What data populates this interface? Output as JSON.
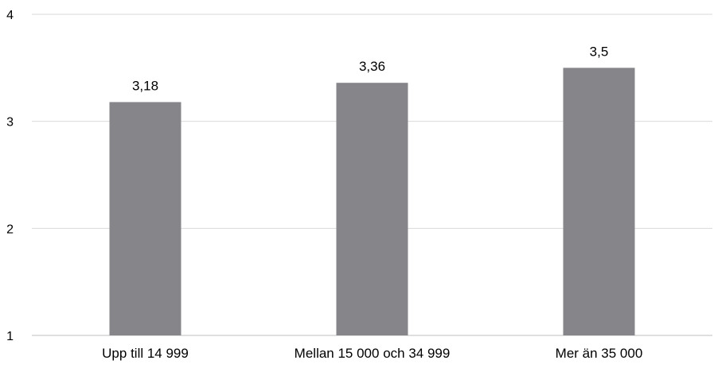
{
  "chart_data": {
    "type": "bar",
    "title": "",
    "xlabel": "",
    "ylabel": "",
    "categories": [
      "Upp till 14 999",
      "Mellan 15 000 och 34 999",
      "Mer än 35 000"
    ],
    "values": [
      3.18,
      3.36,
      3.5
    ],
    "value_labels": [
      "3,18",
      "3,36",
      "3,5"
    ],
    "ylim": [
      1,
      4
    ],
    "yticks": [
      1,
      2,
      3,
      4
    ],
    "ytick_labels": [
      "1",
      "2",
      "3",
      "4"
    ],
    "grid": true,
    "legend": "none",
    "bar_color": "#86868a",
    "grid_color": "#d9d9d9",
    "axis_color": "#bfbfbf"
  }
}
